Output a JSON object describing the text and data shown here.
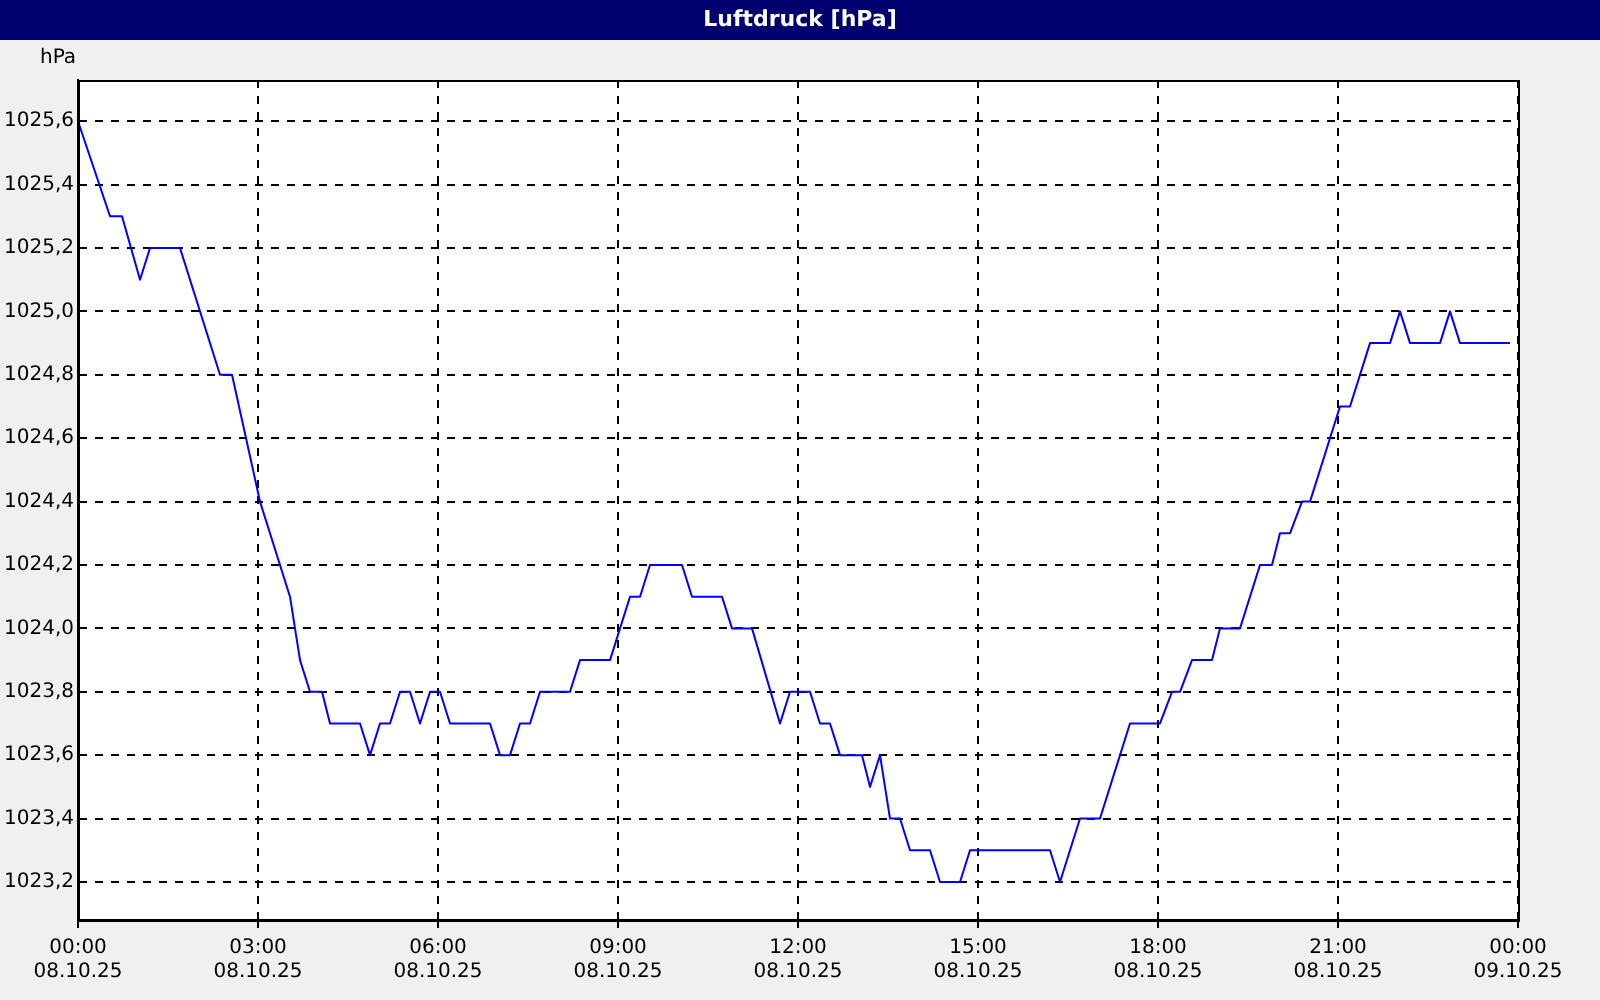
{
  "chart_data": {
    "type": "line",
    "title": "Luftdruck [hPa]",
    "ylabel": "hPa",
    "x": [
      "--10-08T00:00",
      "--10-08T00:32",
      "--10-08T00:44",
      "--10-08T01:02",
      "--10-08T01:12",
      "--10-08T01:42",
      "--10-08T02:22",
      "--10-08T02:34",
      "--10-08T03:02",
      "--10-08T03:32",
      "--10-08T03:42",
      "--10-08T03:52",
      "--10-08T04:04",
      "--10-08T04:12",
      "--10-08T04:42",
      "--10-08T04:52",
      "--10-08T05:02",
      "--10-08T05:12",
      "--10-08T05:22",
      "--10-08T05:32",
      "--10-08T05:42",
      "--10-08T05:52",
      "--10-08T06:02",
      "--10-08T06:12",
      "--10-08T06:52",
      "--10-08T07:02",
      "--10-08T07:12",
      "--10-08T07:22",
      "--10-08T07:32",
      "--10-08T07:42",
      "--10-08T08:12",
      "--10-08T08:22",
      "--10-08T08:52",
      "--10-08T09:12",
      "--10-08T09:22",
      "--10-08T09:32",
      "--10-08T10:04",
      "--10-08T10:14",
      "--10-08T10:44",
      "--10-08T10:54",
      "--10-08T11:14",
      "--10-08T11:42",
      "--10-08T11:52",
      "--10-08T12:12",
      "--10-08T12:22",
      "--10-08T12:32",
      "--10-08T12:42",
      "--10-08T13:04",
      "--10-08T13:12",
      "--10-08T13:22",
      "--10-08T13:32",
      "--10-08T13:42",
      "--10-08T13:52",
      "--10-08T14:12",
      "--10-08T14:22",
      "--10-08T14:42",
      "--10-08T14:52",
      "--10-08T16:12",
      "--10-08T16:22",
      "--10-08T16:42",
      "--10-08T17:02",
      "--10-08T17:32",
      "--10-08T18:02",
      "--10-08T18:14",
      "--10-08T18:22",
      "--10-08T18:34",
      "--10-08T18:54",
      "--10-08T19:02",
      "--10-08T19:22",
      "--10-08T19:42",
      "--10-08T19:54",
      "--10-08T20:02",
      "--10-08T20:12",
      "--10-08T20:24",
      "--10-08T20:32",
      "--10-08T21:02",
      "--10-08T21:12",
      "--10-08T21:32",
      "--10-08T21:52",
      "--10-08T22:02",
      "--10-08T22:12",
      "--10-08T22:42",
      "--10-08T22:52",
      "--10-08T23:02",
      "--10-08T23:52"
    ],
    "series": [
      {
        "color": "#0000ff",
        "values": [
          1025.6,
          1025.3,
          1025.3,
          1025.1,
          1025.2,
          1025.2,
          1024.8,
          1024.8,
          1024.4,
          1024.1,
          1023.9,
          1023.8,
          1023.8,
          1023.7,
          1023.7,
          1023.6,
          1023.7,
          1023.7,
          1023.8,
          1023.8,
          1023.7,
          1023.8,
          1023.8,
          1023.7,
          1023.7,
          1023.6,
          1023.6,
          1023.7,
          1023.7,
          1023.8,
          1023.8,
          1023.9,
          1023.9,
          1024.1,
          1024.1,
          1024.2,
          1024.2,
          1024.1,
          1024.1,
          1024.0,
          1024.0,
          1023.7,
          1023.8,
          1023.8,
          1023.7,
          1023.7,
          1023.6,
          1023.6,
          1023.5,
          1023.6,
          1023.4,
          1023.4,
          1023.3,
          1023.3,
          1023.2,
          1023.2,
          1023.3,
          1023.3,
          1023.2,
          1023.4,
          1023.4,
          1023.7,
          1023.7,
          1023.8,
          1023.8,
          1023.9,
          1023.9,
          1024.0,
          1024.0,
          1024.2,
          1024.2,
          1024.3,
          1024.3,
          1024.4,
          1024.4,
          1024.7,
          1024.7,
          1024.9,
          1024.9,
          1025.0,
          1024.9,
          1024.9,
          1025.0,
          1024.9,
          1024.9
        ]
      }
    ],
    "xlim": [
      "--10-08T00:00",
      "--10-09T00:00"
    ],
    "xticks": [
      {
        "value": "--10-08T00:00",
        "label": "00:00 08.10.25"
      },
      {
        "value": "--10-08T03:00",
        "label": "03:00 08.10.25"
      },
      {
        "value": "--10-08T06:00",
        "label": "06:00 08.10.25"
      },
      {
        "value": "--10-08T09:00",
        "label": "09:00 08.10.25"
      },
      {
        "value": "--10-08T12:00",
        "label": "12:00 08.10.25"
      },
      {
        "value": "--10-08T15:00",
        "label": "15:00 08.10.25"
      },
      {
        "value": "--10-08T18:00",
        "label": "18:00 08.10.25"
      },
      {
        "value": "--10-08T21:00",
        "label": "21:00 08.10.25"
      },
      {
        "value": "--10-09T00:00",
        "label": "00:00 09.10.25"
      }
    ],
    "ylim": [
      1023.08,
      1025.73
    ],
    "yticks": [
      {
        "value": 1023.2,
        "label": "1023,2"
      },
      {
        "value": 1023.4,
        "label": "1023,4"
      },
      {
        "value": 1023.6,
        "label": "1023,6"
      },
      {
        "value": 1023.8,
        "label": "1023,8"
      },
      {
        "value": 1024.0,
        "label": "1024,0"
      },
      {
        "value": 1024.2,
        "label": "1024,2"
      },
      {
        "value": 1024.4,
        "label": "1024,4"
      },
      {
        "value": 1024.6,
        "label": "1024,6"
      },
      {
        "value": 1024.8,
        "label": "1024,8"
      },
      {
        "value": 1025.0,
        "label": "1025,0"
      },
      {
        "value": 1025.2,
        "label": "1025,2"
      },
      {
        "value": 1025.4,
        "label": "1025,4"
      },
      {
        "value": 1025.6,
        "label": "1025,6"
      }
    ],
    "grid": true,
    "legend": false,
    "marker": "none",
    "line_style": "solid"
  }
}
